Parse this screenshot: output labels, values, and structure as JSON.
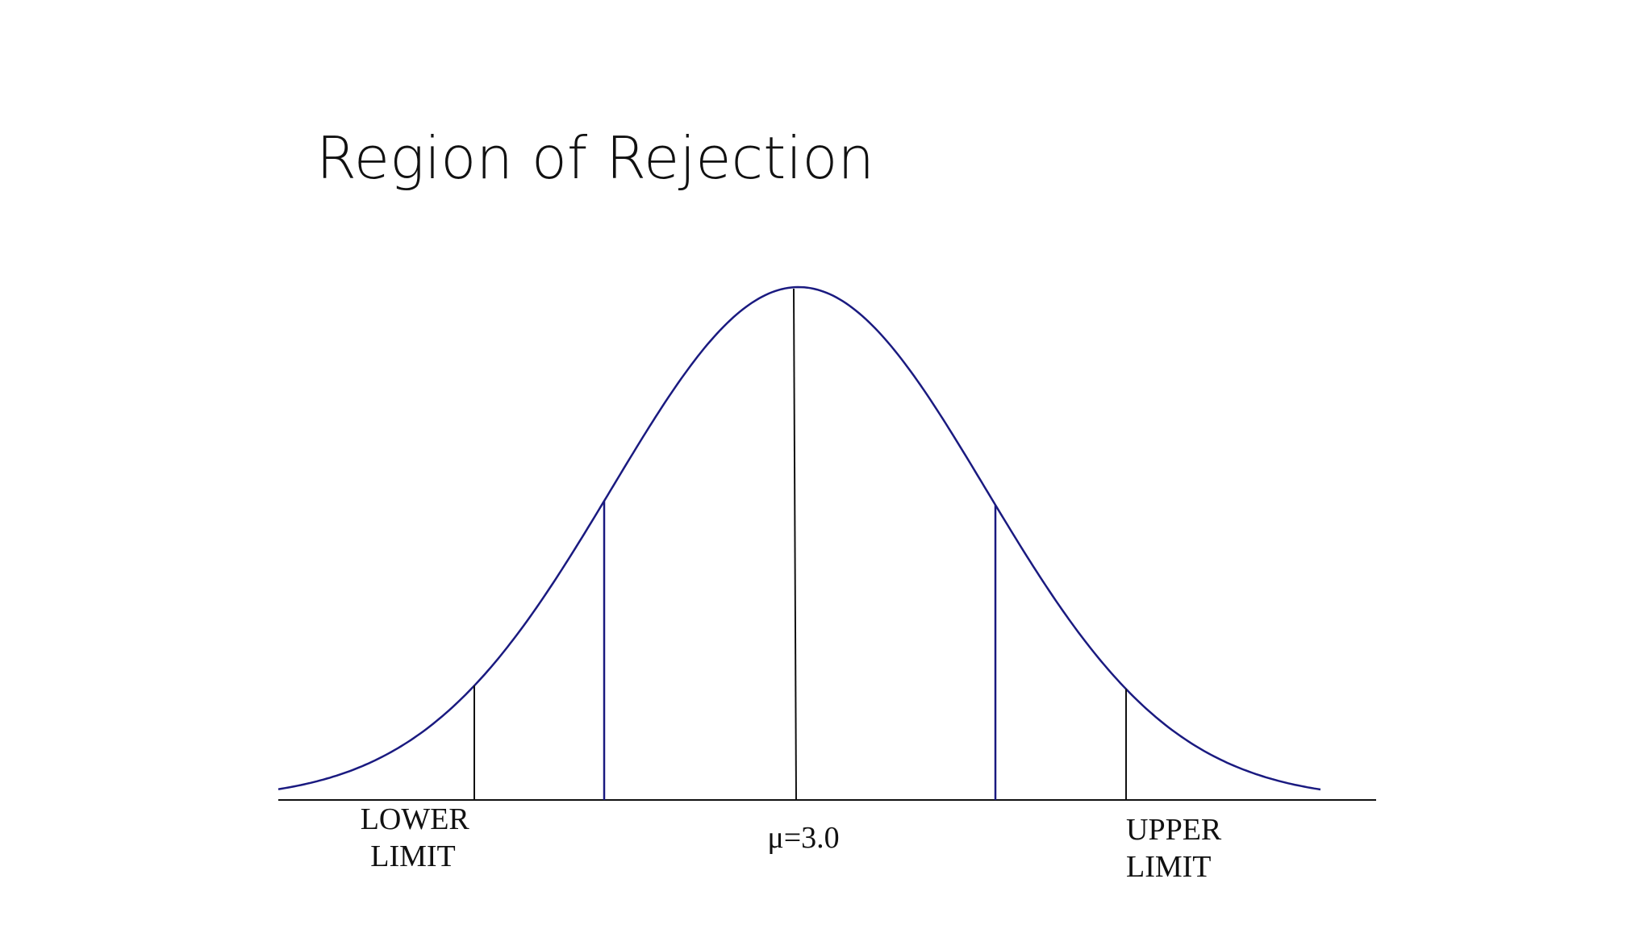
{
  "slide": {
    "title": "Region of Rejection"
  },
  "diagram": {
    "mean_label": "μ=3.0",
    "lower_limit_lines": [
      "LOWER",
      "LIMIT"
    ],
    "upper_limit_lines": [
      "UPPER",
      "LIMIT"
    ],
    "colors": {
      "curve": "#1a1a80",
      "center_line": "#111111",
      "axis": "#111111",
      "limit_tick": "#111111",
      "inner_lines": "#1a1a80"
    }
  }
}
